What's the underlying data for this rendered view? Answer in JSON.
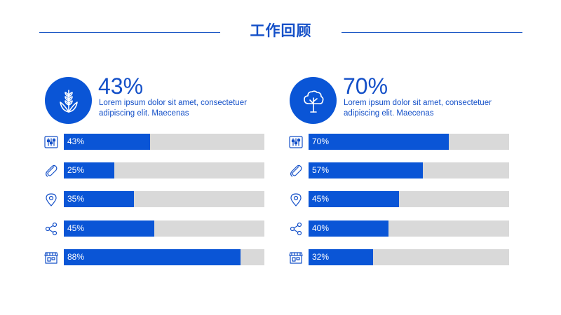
{
  "header": {
    "title": "工作回顾"
  },
  "chart_data": [
    {
      "type": "bar",
      "orientation": "horizontal",
      "headline_value": "43%",
      "description": "Lorem ipsum dolor sit amet, consectetuer adipiscing elit. Maecenas",
      "circle_icon": "wheat-icon",
      "values": [
        43,
        25,
        35,
        45,
        88
      ],
      "labels": [
        "43%",
        "25%",
        "35%",
        "45%",
        "88%"
      ],
      "row_icons": [
        "sliders-icon",
        "paperclip-icon",
        "location-pin-icon",
        "share-icon",
        "shop-icon"
      ],
      "xlim": [
        0,
        100
      ]
    },
    {
      "type": "bar",
      "orientation": "horizontal",
      "headline_value": "70%",
      "description": "Lorem ipsum dolor sit amet, consectetuer adipiscing elit. Maecenas",
      "circle_icon": "tree-icon",
      "values": [
        70,
        57,
        45,
        40,
        32
      ],
      "labels": [
        "70%",
        "57%",
        "45%",
        "40%",
        "32%"
      ],
      "row_icons": [
        "sliders-icon",
        "paperclip-icon",
        "location-pin-icon",
        "share-icon",
        "shop-icon"
      ],
      "xlim": [
        0,
        100
      ]
    }
  ],
  "colors": {
    "accent": "#0a55d6",
    "track": "#d9d9d9",
    "text": "#1450c8"
  }
}
